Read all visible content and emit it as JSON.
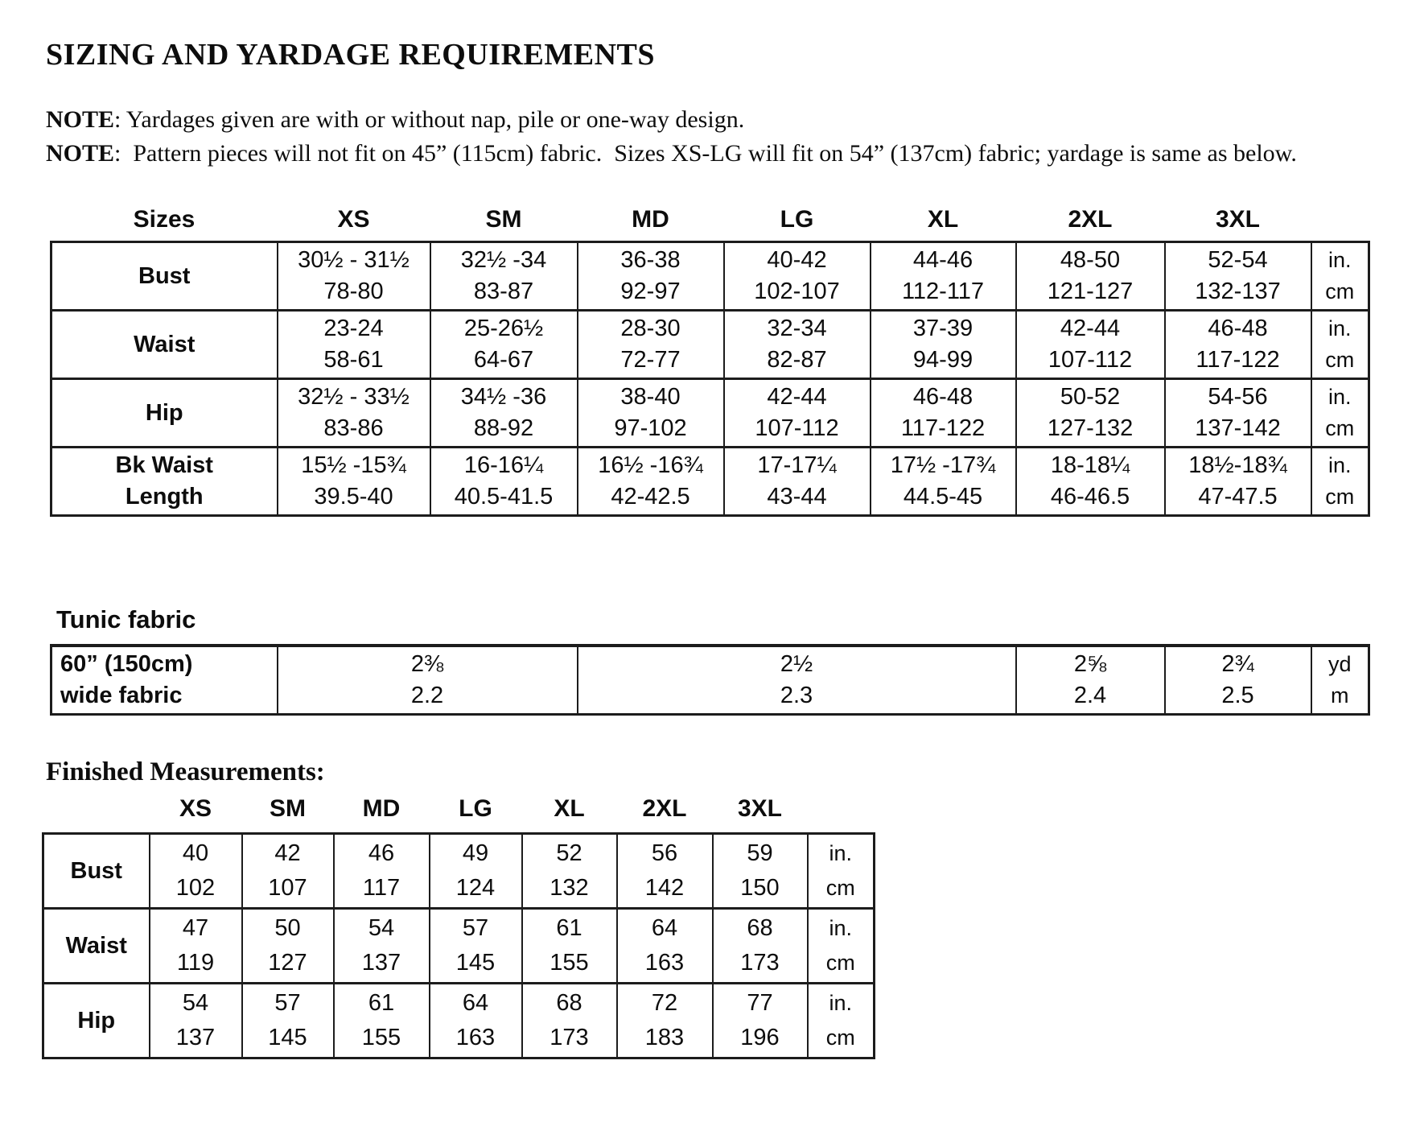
{
  "document": {
    "title": "SIZING AND YARDAGE REQUIREMENTS",
    "notes": [
      {
        "label": "NOTE",
        "text": ": Yardages given are with or without nap, pile or one-way design."
      },
      {
        "label": "NOTE",
        "text": ":  Pattern pieces will not fit on 45” (115cm) fabric.  Sizes XS-LG will fit on 54” (137cm) fabric; yardage is same as below."
      }
    ]
  },
  "sizing_table": {
    "corner_label": "Sizes",
    "sizes": [
      "XS",
      "SM",
      "MD",
      "LG",
      "XL",
      "2XL",
      "3XL"
    ],
    "unit_labels": [
      "in.",
      "cm"
    ],
    "rows": [
      {
        "label_lines": [
          "Bust"
        ],
        "in": [
          "30½ - 31½",
          "32½ -34",
          "36-38",
          "40-42",
          "44-46",
          "48-50",
          "52-54"
        ],
        "cm": [
          "78-80",
          "83-87",
          "92-97",
          "102-107",
          "112-117",
          "121-127",
          "132-137"
        ]
      },
      {
        "label_lines": [
          "Waist"
        ],
        "in": [
          "23-24",
          "25-26½",
          "28-30",
          "32-34",
          "37-39",
          "42-44",
          "46-48"
        ],
        "cm": [
          "58-61",
          "64-67",
          "72-77",
          "82-87",
          "94-99",
          "107-112",
          "117-122"
        ]
      },
      {
        "label_lines": [
          "Hip"
        ],
        "in": [
          "32½ - 33½",
          "34½ -36",
          "38-40",
          "42-44",
          "46-48",
          "50-52",
          "54-56"
        ],
        "cm": [
          "83-86",
          "88-92",
          "97-102",
          "107-112",
          "117-122",
          "127-132",
          "137-142"
        ]
      },
      {
        "label_lines": [
          "Bk Waist",
          "Length"
        ],
        "in": [
          "15½ -15¾",
          "16-16¼",
          "16½ -16¾",
          "17-17¼",
          "17½ -17¾",
          "18-18¼",
          "18½-18¾"
        ],
        "cm": [
          "39.5-40",
          "40.5-41.5",
          "42-42.5",
          "43-44",
          "44.5-45",
          "46-46.5",
          "47-47.5"
        ]
      }
    ]
  },
  "tunic_table": {
    "section_title": "Tunic fabric",
    "row_label_lines": [
      "60” (150cm)",
      "wide fabric"
    ],
    "unit_labels": [
      "yd",
      "m"
    ],
    "cells": [
      {
        "sizes_covered": "XS-SM",
        "yd": "2⅜",
        "m": "2.2"
      },
      {
        "sizes_covered": "MD-XL",
        "yd": "2½",
        "m": "2.3"
      },
      {
        "sizes_covered": "2XL",
        "yd": "2⅝",
        "m": "2.4"
      },
      {
        "sizes_covered": "3XL",
        "yd": "2¾",
        "m": "2.5"
      }
    ]
  },
  "finished_table": {
    "section_title": "Finished Measurements:",
    "sizes": [
      "XS",
      "SM",
      "MD",
      "LG",
      "XL",
      "2XL",
      "3XL"
    ],
    "unit_labels": [
      "in.",
      "cm"
    ],
    "rows": [
      {
        "label_lines": [
          "Bust"
        ],
        "in": [
          "40",
          "42",
          "46",
          "49",
          "52",
          "56",
          "59"
        ],
        "cm": [
          "102",
          "107",
          "117",
          "124",
          "132",
          "142",
          "150"
        ]
      },
      {
        "label_lines": [
          "Waist"
        ],
        "in": [
          "47",
          "50",
          "54",
          "57",
          "61",
          "64",
          "68"
        ],
        "cm": [
          "119",
          "127",
          "137",
          "145",
          "155",
          "163",
          "173"
        ]
      },
      {
        "label_lines": [
          "Hip"
        ],
        "in": [
          "54",
          "57",
          "61",
          "64",
          "68",
          "72",
          "77"
        ],
        "cm": [
          "137",
          "145",
          "155",
          "163",
          "173",
          "183",
          "196"
        ]
      }
    ]
  }
}
